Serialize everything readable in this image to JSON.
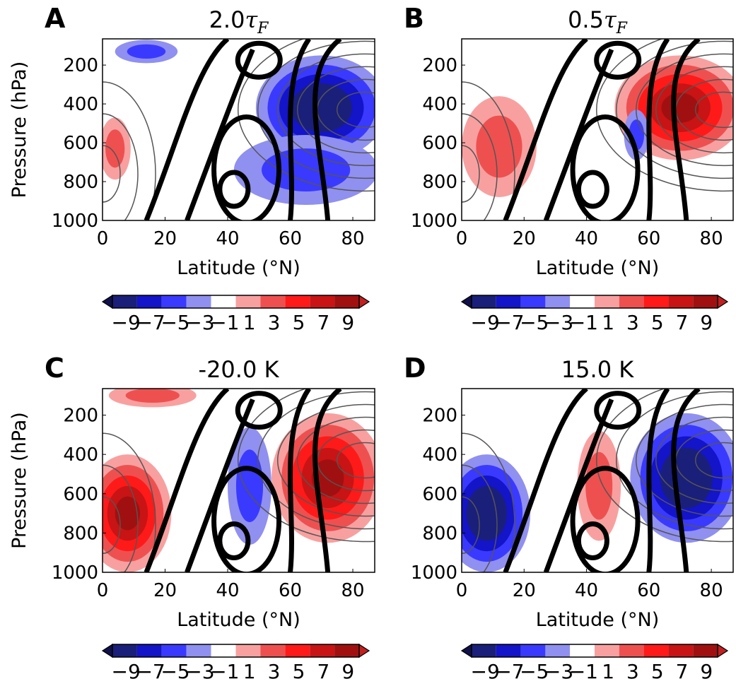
{
  "chart_data": [
    {
      "type": "contour",
      "panel_label": "A",
      "title_prefix": "2.0",
      "title_symbol": "τ",
      "title_subscript": "F",
      "xlabel": "Latitude (°N)",
      "ylabel": "Pressure (hPa)",
      "xticks": [
        0,
        20,
        40,
        60,
        80
      ],
      "yticks": [
        200,
        400,
        600,
        800,
        1000
      ],
      "xlim": [
        0,
        87
      ],
      "ylim": [
        1000,
        65
      ],
      "colorbar": {
        "ticks": [
          "−9",
          "−7",
          "−5",
          "−3",
          "−1",
          "1",
          "3",
          "5",
          "7",
          "9"
        ]
      },
      "anomaly_regions": [
        {
          "level": 2,
          "lat": 70,
          "p": 420,
          "lat_radius": 21,
          "p_radius": 270
        },
        {
          "level": 1,
          "lat": 65,
          "p": 740,
          "lat_radius": 23,
          "p_radius": 180
        },
        {
          "level": -1,
          "lat": 4,
          "p": 630,
          "lat_radius": 5,
          "p_radius": 160
        },
        {
          "level": 1,
          "lat": 14,
          "p": 130,
          "lat_radius": 10,
          "p_radius": 60
        }
      ]
    },
    {
      "type": "contour",
      "panel_label": "B",
      "title_prefix": "0.5",
      "title_symbol": "τ",
      "title_subscript": "F",
      "xlabel": "Latitude (°N)",
      "ylabel": "",
      "xticks": [
        0,
        20,
        40,
        60,
        80
      ],
      "yticks": [
        200,
        400,
        600,
        800,
        1000
      ],
      "xlim": [
        0,
        87
      ],
      "ylim": [
        1000,
        65
      ],
      "colorbar": {
        "ticks": [
          "−9",
          "−7",
          "−5",
          "−3",
          "−1",
          "1",
          "3",
          "5",
          "7",
          "9"
        ]
      },
      "anomaly_regions": [
        {
          "level": -2,
          "lat": 70,
          "p": 420,
          "lat_radius": 21,
          "p_radius": 270
        },
        {
          "level": -1,
          "lat": 12,
          "p": 620,
          "lat_radius": 12,
          "p_radius": 260
        },
        {
          "level": 1,
          "lat": 56,
          "p": 560,
          "lat_radius": 4,
          "p_radius": 130
        }
      ]
    },
    {
      "type": "contour",
      "panel_label": "C",
      "title": "-20.0 K",
      "xlabel": "Latitude (°N)",
      "ylabel": "Pressure (hPa)",
      "xticks": [
        0,
        20,
        40,
        60,
        80
      ],
      "yticks": [
        200,
        400,
        600,
        800,
        1000
      ],
      "xlim": [
        0,
        87
      ],
      "ylim": [
        1000,
        65
      ],
      "colorbar": {
        "ticks": [
          "−9",
          "−7",
          "−5",
          "−3",
          "−1",
          "1",
          "3",
          "5",
          "7",
          "9"
        ]
      },
      "anomaly_regions": [
        {
          "level": -2,
          "lat": 72,
          "p": 520,
          "lat_radius": 18,
          "p_radius": 330
        },
        {
          "level": -2,
          "lat": 8,
          "p": 700,
          "lat_radius": 14,
          "p_radius": 300
        },
        {
          "level": 1,
          "lat": 47,
          "p": 560,
          "lat_radius": 7,
          "p_radius": 300
        },
        {
          "level": -1,
          "lat": 16,
          "p": 100,
          "lat_radius": 14,
          "p_radius": 60
        }
      ]
    },
    {
      "type": "contour",
      "panel_label": "D",
      "title": "15.0 K",
      "xlabel": "Latitude (°N)",
      "ylabel": "",
      "xticks": [
        0,
        20,
        40,
        60,
        80
      ],
      "yticks": [
        200,
        400,
        600,
        800,
        1000
      ],
      "xlim": [
        0,
        87
      ],
      "ylim": [
        1000,
        65
      ],
      "colorbar": {
        "ticks": [
          "−9",
          "−7",
          "−5",
          "−3",
          "−1",
          "1",
          "3",
          "5",
          "7",
          "9"
        ]
      },
      "anomaly_regions": [
        {
          "level": 2,
          "lat": 72,
          "p": 520,
          "lat_radius": 18,
          "p_radius": 330
        },
        {
          "level": 2,
          "lat": 8,
          "p": 700,
          "lat_radius": 14,
          "p_radius": 300
        },
        {
          "level": -1,
          "lat": 44,
          "p": 560,
          "lat_radius": 7,
          "p_radius": 280
        }
      ]
    }
  ],
  "colorbar_colors": [
    "#1a1f7a",
    "#1414c8",
    "#3a3aff",
    "#9090f0",
    "#ffffff",
    "#f8a0a0",
    "#ee5050",
    "#ff1a1a",
    "#c81414",
    "#a01010"
  ]
}
